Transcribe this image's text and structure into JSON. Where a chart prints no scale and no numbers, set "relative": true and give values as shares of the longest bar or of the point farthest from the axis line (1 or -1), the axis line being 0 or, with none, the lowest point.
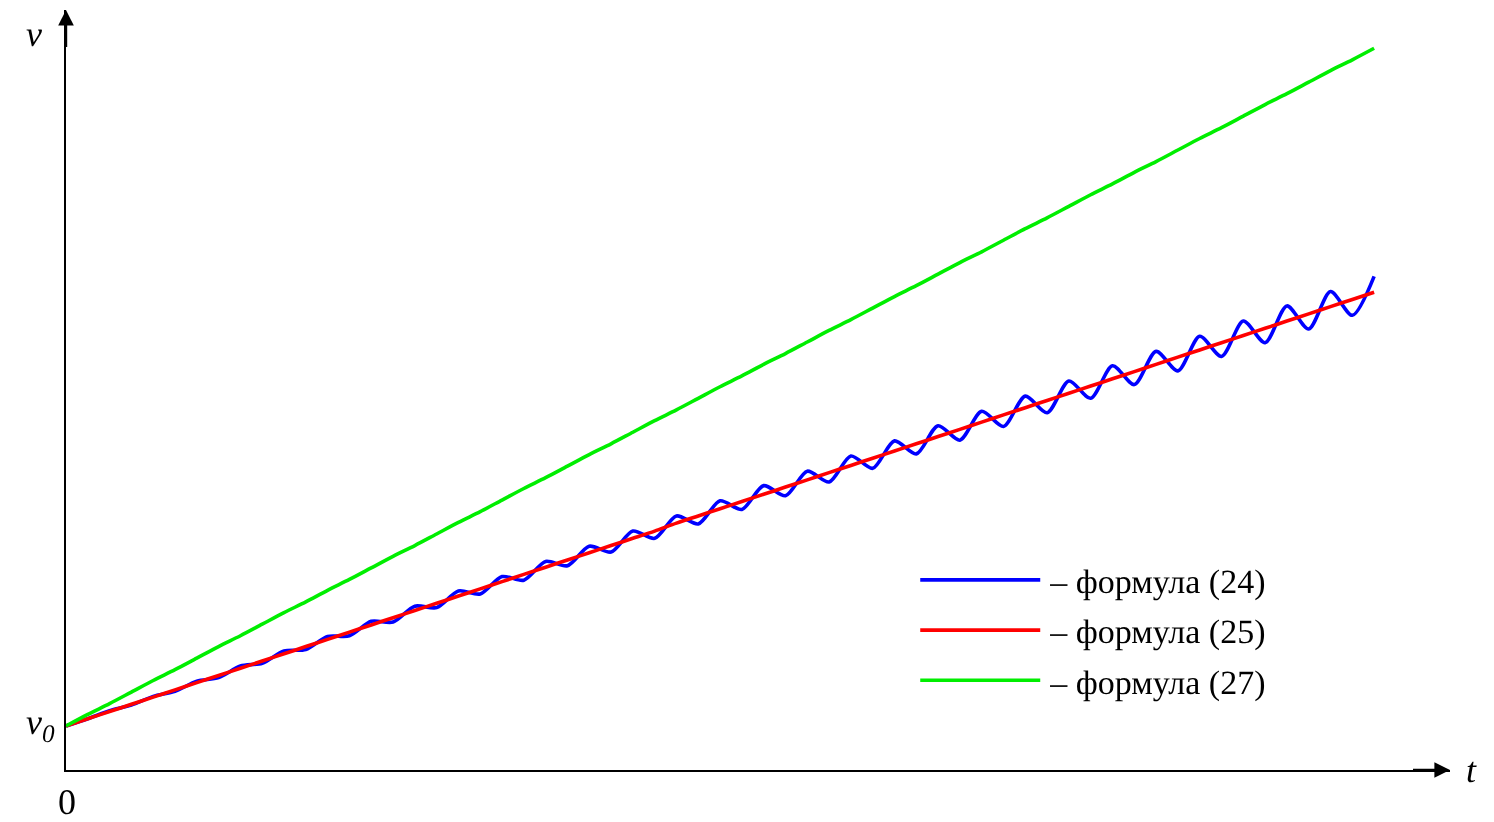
{
  "chart_data": {
    "type": "line",
    "relative": true,
    "xlabel": "t",
    "ylabel": "v",
    "legend": "bottom right",
    "marker": "none",
    "line_style": "solid",
    "categories": [
      null,
      null,
      null,
      null,
      null,
      null,
      null,
      null,
      null,
      null,
      null,
      null,
      null,
      null,
      null,
      null,
      null,
      null,
      null,
      null,
      null,
      null,
      null,
      null,
      null,
      null,
      null,
      null,
      null,
      null,
      null,
      null,
      null,
      null,
      null,
      null,
      null,
      null,
      null,
      null,
      null,
      null,
      null,
      null,
      null,
      null,
      null,
      null,
      null,
      null,
      null,
      null,
      null,
      null,
      null,
      null,
      null,
      null,
      null,
      null,
      null
    ],
    "series": [
      {
        "name": "– формула (24)",
        "color": "#0000ff",
        "values": [
          0.061,
          0.071,
          0.082,
          0.09,
          0.102,
          0.109,
          0.123,
          0.128,
          0.144,
          0.148,
          0.165,
          0.167,
          0.185,
          0.186,
          0.206,
          0.205,
          0.227,
          0.225,
          0.248,
          0.244,
          0.268,
          0.263,
          0.289,
          0.283,
          0.31,
          0.302,
          0.331,
          0.321,
          0.352,
          0.341,
          0.373,
          0.361,
          0.394,
          0.38,
          0.414,
          0.399,
          0.435,
          0.418,
          0.456,
          0.438,
          0.477,
          0.457,
          0.497,
          0.476,
          0.518,
          0.495,
          0.539,
          0.515,
          0.56,
          0.534,
          0.58,
          0.553,
          0.601,
          0.573,
          0.622,
          0.592,
          0.643,
          0.611,
          0.663,
          0.63,
          0.684
        ]
      },
      {
        "name": "– формула (25)",
        "color": "#ff0000",
        "values": [
          0.061,
          0.071,
          0.081,
          0.091,
          0.101,
          0.111,
          0.121,
          0.131,
          0.141,
          0.151,
          0.161,
          0.171,
          0.181,
          0.191,
          0.201,
          0.211,
          0.221,
          0.231,
          0.241,
          0.251,
          0.261,
          0.271,
          0.281,
          0.291,
          0.301,
          0.311,
          0.321,
          0.331,
          0.342,
          0.352,
          0.362,
          0.372,
          0.382,
          0.392,
          0.402,
          0.412,
          0.422,
          0.432,
          0.442,
          0.452,
          0.462,
          0.472,
          0.482,
          0.492,
          0.502,
          0.512,
          0.522,
          0.532,
          0.542,
          0.552,
          0.562,
          0.572,
          0.582,
          0.592,
          0.602,
          0.612,
          0.622,
          0.632,
          0.642,
          0.652,
          0.662
        ]
      },
      {
        "name": "– формула (27)",
        "color": "#00ee00",
        "values": [
          0.061,
          0.077,
          0.092,
          0.108,
          0.124,
          0.139,
          0.155,
          0.171,
          0.186,
          0.202,
          0.218,
          0.233,
          0.249,
          0.264,
          0.28,
          0.296,
          0.311,
          0.327,
          0.343,
          0.358,
          0.374,
          0.39,
          0.405,
          0.421,
          0.437,
          0.452,
          0.468,
          0.484,
          0.499,
          0.515,
          0.531,
          0.546,
          0.562,
          0.577,
          0.593,
          0.609,
          0.624,
          0.64,
          0.656,
          0.671,
          0.687,
          0.703,
          0.718,
          0.734,
          0.75,
          0.765,
          0.781,
          0.797,
          0.812,
          0.828,
          0.843,
          0.859,
          0.875,
          0.89,
          0.906,
          0.922,
          0.937,
          0.953,
          0.969,
          0.984,
          1.0
        ]
      }
    ],
    "annotations": [
      "v$_{0}$",
      "0"
    ]
  }
}
